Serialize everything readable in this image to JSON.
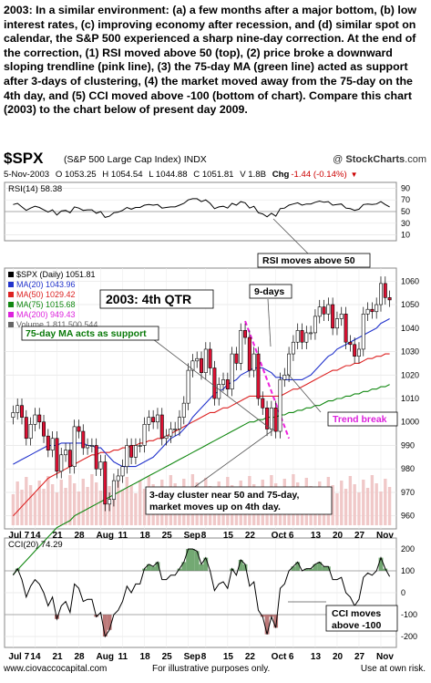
{
  "intro_text": "2003:  In a similar environment: (a) a few months after a major bottom, (b) low interest rates, (c) improving economy after recession, and (d) similar spot on calendar, the S&P 500 experienced a sharp nine-day correction.  At the end of the correction, (1) RSI moved above 50 (top), (2) price broke a downward sloping trendline (pink line), (3) the 75-day MA (green line) acted as support after 3-days of clustering, (4) the market moved away from the 75-day on the 4th day, and (5) CCI moved above -100 (bottom of chart).  Compare this chart (2003) to the chart below of present day 2009.",
  "header": {
    "ticker": "$SPX",
    "description": "(S&P 500 Large Cap Index)  INDX",
    "brand_prefix": "@ ",
    "brand_name": "StockCharts",
    "brand_suffix": ".com"
  },
  "quote": {
    "date": "5-Nov-2003",
    "open": "O 1053.25",
    "high": "H 1054.54",
    "low": "L 1044.88",
    "close": "C 1051.81",
    "volume": "V 1.8B",
    "change_label": "Chg",
    "change": "-1.44 (-0.14%)",
    "change_arrow": "▼"
  },
  "rsi_panel": {
    "label": "RSI(14) 58.38",
    "ticks": [
      "90",
      "70",
      "50",
      "30",
      "10"
    ],
    "annotation": "RSI moves above 50"
  },
  "price_panel": {
    "legend": [
      {
        "text": "$SPX (Daily) 1051.81",
        "color": "#000000"
      },
      {
        "text": "MA(20) 1043.96",
        "color": "#2233cc"
      },
      {
        "text": "MA(50) 1029.42",
        "color": "#dd2222"
      },
      {
        "text": "MA(75) 1015.68",
        "color": "#118811"
      },
      {
        "text": "MA(200) 949.43",
        "color": "#dd22dd"
      },
      {
        "text": "Volume 1,811,500,544",
        "color": "#666666"
      }
    ],
    "price_ticks": [
      "1060",
      "1050",
      "1040",
      "1030",
      "1020",
      "1010",
      "1000",
      "990",
      "980",
      "970",
      "960"
    ],
    "labels": {
      "quarter": "2003: 4th QTR",
      "nine_days": "9-days",
      "ma_support": "75-day MA acts as support",
      "trend_break": "Trend break",
      "cluster_line1": "3-day cluster near 50 and 75-day,",
      "cluster_line2": "market moves up on 4th day."
    }
  },
  "cci_panel": {
    "label": "CCI(20) 74.29",
    "ticks": [
      "200",
      "100",
      "0",
      "-100",
      "-200"
    ],
    "annotation_line1": "CCI moves",
    "annotation_line2": "above -100"
  },
  "x_labels": [
    "Jul 7",
    "14",
    "21",
    "28",
    "Aug",
    "11",
    "18",
    "25",
    "Sep",
    "8",
    "15",
    "22",
    "Oct",
    "6",
    "13",
    "20",
    "27",
    "Nov"
  ],
  "footer": {
    "website": "www.ciovaccocapital.com",
    "illustrative": "For illustrative purposes only.",
    "risk": "Use at own risk."
  },
  "colors": {
    "ma20": "#2233cc",
    "ma50": "#dd2222",
    "ma75": "#118811",
    "trendline": "#ee22dd",
    "up_candle": "#ffffff",
    "down_candle": "#dd1133",
    "volume_bar": "#f0c8c8",
    "cci_positive": "#5a9a5a",
    "cci_negative": "#b06060"
  },
  "chart_data": {
    "type": "candlestick",
    "x": [
      "2003-07-07",
      "2003-07-08",
      "2003-07-09",
      "2003-07-10",
      "2003-07-11",
      "2003-07-14",
      "2003-07-15",
      "2003-07-16",
      "2003-07-17",
      "2003-07-18",
      "2003-07-21",
      "2003-07-22",
      "2003-07-23",
      "2003-07-24",
      "2003-07-25",
      "2003-07-28",
      "2003-07-29",
      "2003-07-30",
      "2003-07-31",
      "2003-08-01",
      "2003-08-04",
      "2003-08-05",
      "2003-08-06",
      "2003-08-07",
      "2003-08-08",
      "2003-08-11",
      "2003-08-12",
      "2003-08-13",
      "2003-08-14",
      "2003-08-15",
      "2003-08-18",
      "2003-08-19",
      "2003-08-20",
      "2003-08-21",
      "2003-08-22",
      "2003-08-25",
      "2003-08-26",
      "2003-08-27",
      "2003-08-28",
      "2003-08-29",
      "2003-09-02",
      "2003-09-03",
      "2003-09-04",
      "2003-09-05",
      "2003-09-08",
      "2003-09-09",
      "2003-09-10",
      "2003-09-11",
      "2003-09-12",
      "2003-09-15",
      "2003-09-16",
      "2003-09-17",
      "2003-09-18",
      "2003-09-19",
      "2003-09-22",
      "2003-09-23",
      "2003-09-24",
      "2003-09-25",
      "2003-09-26",
      "2003-09-29",
      "2003-09-30",
      "2003-10-01",
      "2003-10-02",
      "2003-10-03",
      "2003-10-06",
      "2003-10-07",
      "2003-10-08",
      "2003-10-09",
      "2003-10-10",
      "2003-10-13",
      "2003-10-14",
      "2003-10-15",
      "2003-10-16",
      "2003-10-17",
      "2003-10-20",
      "2003-10-21",
      "2003-10-22",
      "2003-10-23",
      "2003-10-24",
      "2003-10-27",
      "2003-10-28",
      "2003-10-29",
      "2003-10-30",
      "2003-10-31",
      "2003-11-03",
      "2003-11-04",
      "2003-11-05"
    ],
    "close": [
      1004,
      1007,
      1002,
      993,
      999,
      1003,
      1000,
      994,
      988,
      993,
      979,
      986,
      988,
      981,
      998,
      996,
      989,
      990,
      990,
      980,
      983,
      965,
      967,
      975,
      977,
      981,
      990,
      985,
      990,
      990,
      999,
      1002,
      1000,
      1003,
      993,
      994,
      997,
      997,
      1002,
      1008,
      1022,
      1026,
      1027,
      1021,
      1031,
      1023,
      1010,
      1016,
      1018,
      1014,
      1029,
      1025,
      1039,
      1036,
      1022,
      1029,
      1010,
      1006,
      997,
      1006,
      996,
      1018,
      1020,
      1029,
      1034,
      1039,
      1034,
      1038,
      1038,
      1045,
      1049,
      1046,
      1050,
      1040,
      1044,
      1046,
      1034,
      1033,
      1028,
      1031,
      1046,
      1048,
      1047,
      1050,
      1059,
      1053,
      1052
    ],
    "ma20": [
      982,
      983,
      984,
      985,
      986,
      987,
      988,
      989,
      990,
      990,
      990,
      991,
      991,
      991,
      991,
      991,
      991,
      990,
      990,
      989,
      989,
      987,
      985,
      983,
      982,
      981,
      981,
      981,
      981,
      982,
      983,
      984,
      985,
      987,
      989,
      991,
      993,
      994,
      995,
      997,
      999,
      1002,
      1004,
      1006,
      1008,
      1010,
      1012,
      1013,
      1014,
      1016,
      1017,
      1018,
      1020,
      1021,
      1022,
      1023,
      1023,
      1023,
      1022,
      1021,
      1019,
      1019,
      1018,
      1018,
      1018,
      1018,
      1018,
      1019,
      1020,
      1022,
      1024,
      1026,
      1028,
      1029,
      1031,
      1032,
      1033,
      1034,
      1035,
      1036,
      1037,
      1038,
      1039,
      1040,
      1042,
      1043,
      1044
    ],
    "ma50": [
      960,
      962,
      964,
      966,
      968,
      970,
      972,
      974,
      976,
      977,
      978,
      979,
      980,
      981,
      982,
      983,
      984,
      985,
      986,
      986,
      987,
      987,
      987,
      988,
      988,
      989,
      989,
      990,
      990,
      991,
      991,
      992,
      992,
      993,
      993,
      994,
      995,
      996,
      997,
      998,
      999,
      1000,
      1001,
      1002,
      1003,
      1004,
      1004,
      1005,
      1006,
      1006,
      1007,
      1008,
      1009,
      1010,
      1011,
      1011,
      1011,
      1011,
      1011,
      1011,
      1011,
      1011,
      1012,
      1013,
      1014,
      1014,
      1015,
      1016,
      1017,
      1018,
      1019,
      1020,
      1021,
      1022,
      1022,
      1023,
      1024,
      1024,
      1025,
      1025,
      1026,
      1027,
      1027,
      1028,
      1028,
      1029,
      1029
    ],
    "ma75": [
      935,
      937,
      939,
      941,
      943,
      945,
      947,
      949,
      951,
      953,
      955,
      956,
      957,
      958,
      960,
      961,
      962,
      963,
      964,
      965,
      966,
      967,
      968,
      969,
      970,
      971,
      972,
      973,
      974,
      975,
      976,
      977,
      978,
      979,
      980,
      981,
      982,
      983,
      984,
      985,
      986,
      987,
      988,
      989,
      990,
      991,
      992,
      993,
      994,
      995,
      996,
      997,
      998,
      999,
      1000,
      1000,
      1001,
      1001,
      1002,
      1002,
      1002,
      1003,
      1003,
      1004,
      1004,
      1005,
      1005,
      1006,
      1006,
      1007,
      1007,
      1008,
      1009,
      1009,
      1010,
      1010,
      1011,
      1011,
      1012,
      1012,
      1013,
      1013,
      1014,
      1014,
      1015,
      1015,
      1016
    ],
    "rsi14": [
      62,
      64,
      58,
      52,
      56,
      59,
      57,
      53,
      49,
      53,
      44,
      51,
      52,
      48,
      58,
      56,
      52,
      53,
      53,
      47,
      50,
      40,
      42,
      48,
      49,
      52,
      57,
      54,
      57,
      57,
      61,
      62,
      61,
      62,
      56,
      57,
      58,
      58,
      61,
      64,
      70,
      72,
      72,
      67,
      70,
      64,
      55,
      58,
      59,
      56,
      64,
      61,
      67,
      65,
      56,
      59,
      48,
      46,
      41,
      47,
      42,
      55,
      56,
      61,
      63,
      65,
      61,
      63,
      63,
      66,
      68,
      66,
      67,
      61,
      62,
      63,
      56,
      55,
      52,
      54,
      62,
      63,
      62,
      63,
      67,
      62,
      58
    ],
    "cci20": [
      80,
      110,
      60,
      -20,
      30,
      60,
      40,
      0,
      -60,
      -20,
      -120,
      -60,
      -40,
      -90,
      40,
      20,
      -40,
      -30,
      -30,
      -110,
      -90,
      -200,
      -170,
      -100,
      -80,
      -40,
      30,
      0,
      40,
      40,
      110,
      130,
      120,
      140,
      60,
      60,
      80,
      80,
      110,
      140,
      200,
      200,
      190,
      130,
      160,
      100,
      10,
      40,
      50,
      20,
      110,
      80,
      150,
      130,
      30,
      50,
      -80,
      -110,
      -190,
      -110,
      -160,
      20,
      40,
      100,
      120,
      140,
      100,
      110,
      110,
      130,
      140,
      120,
      120,
      60,
      60,
      70,
      0,
      -20,
      -60,
      -30,
      70,
      90,
      80,
      100,
      160,
      110,
      74
    ]
  }
}
